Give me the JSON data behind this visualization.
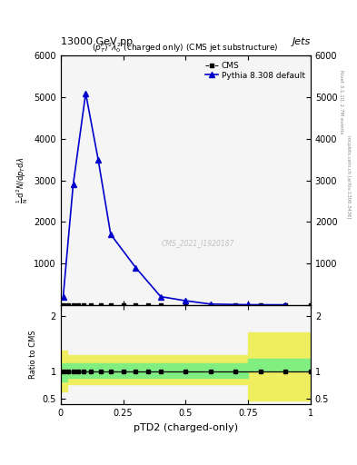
{
  "title_top": "13000 GeV pp",
  "title_right": "Jets",
  "plot_title": "$(p_T^P)^2\\lambda_0^2$ (charged only) (CMS jet substructure)",
  "watermark": "CMS_2021_I1920187",
  "rivet_text": "Rivet 3.1.10, 2.7M events",
  "arxiv_text": "mcplots.cern.ch [arXiv:1306.3436]",
  "xlabel": "pTD2 (charged-only)",
  "cms_color": "black",
  "pythia_color": "#0000cc",
  "pythia_x": [
    0.01,
    0.05,
    0.1,
    0.15,
    0.2,
    0.3,
    0.4,
    0.5,
    0.6,
    0.75,
    0.9
  ],
  "pythia_y": [
    200,
    2900,
    5100,
    3500,
    1700,
    900,
    200,
    100,
    20,
    5,
    2
  ],
  "cms_x": [
    0.01,
    0.03,
    0.05,
    0.07,
    0.09,
    0.12,
    0.16,
    0.2,
    0.25,
    0.3,
    0.35,
    0.4,
    0.5,
    0.6,
    0.7,
    0.8,
    0.9,
    1.0
  ],
  "ylim_main": [
    0,
    6000
  ],
  "xlim": [
    0,
    1
  ],
  "ratio_ylim": [
    0.4,
    2.2
  ],
  "ratio_green_bins": [
    0.0,
    0.025,
    0.75,
    1.0
  ],
  "ratio_green_low": [
    0.82,
    0.88,
    1.02
  ],
  "ratio_green_high": [
    1.15,
    1.15,
    1.22
  ],
  "ratio_yellow_low": [
    0.63,
    0.77,
    0.48
  ],
  "ratio_yellow_high": [
    1.38,
    1.3,
    1.7
  ],
  "green_color": "#80ee80",
  "yellow_color": "#eeee60",
  "bg_color": "#f5f5f5"
}
